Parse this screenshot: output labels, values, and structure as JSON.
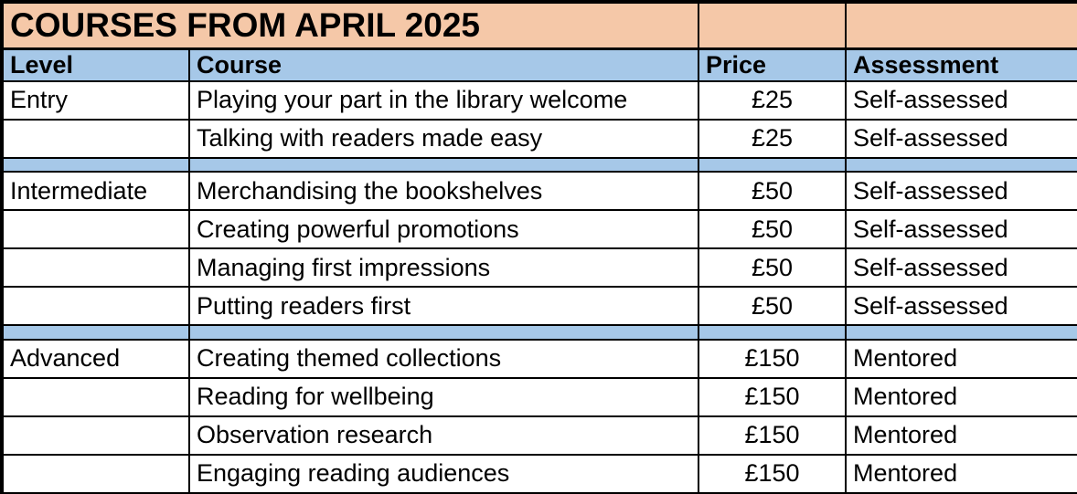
{
  "title": "COURSES FROM APRIL 2025",
  "columns": [
    "Level",
    "Course",
    "Price",
    "Assessment"
  ],
  "colors": {
    "title_bg": "#f5c8a8",
    "header_bg": "#a6c8e8",
    "separator_bg": "#a6c8e8",
    "border": "#000000",
    "text": "#000000",
    "row_bg": "#ffffff"
  },
  "rows": [
    {
      "type": "course",
      "level": "Entry",
      "course": "Playing your part in the library welcome",
      "price": "£25",
      "assessment": "Self-assessed"
    },
    {
      "type": "course",
      "level": "",
      "course": "Talking with readers made easy",
      "price": "£25",
      "assessment": "Self-assessed"
    },
    {
      "type": "separator"
    },
    {
      "type": "course",
      "level": "Intermediate",
      "course": "Merchandising the bookshelves",
      "price": "£50",
      "assessment": "Self-assessed"
    },
    {
      "type": "course",
      "level": "",
      "course": "Creating powerful promotions",
      "price": "£50",
      "assessment": "Self-assessed"
    },
    {
      "type": "course",
      "level": "",
      "course": "Managing first impressions",
      "price": "£50",
      "assessment": "Self-assessed"
    },
    {
      "type": "course",
      "level": "",
      "course": "Putting readers first",
      "price": "£50",
      "assessment": "Self-assessed"
    },
    {
      "type": "separator"
    },
    {
      "type": "course",
      "level": "Advanced",
      "course": "Creating themed collections",
      "price": "£150",
      "assessment": "Mentored"
    },
    {
      "type": "course",
      "level": "",
      "course": "Reading for wellbeing",
      "price": "£150",
      "assessment": "Mentored"
    },
    {
      "type": "course",
      "level": "",
      "course": "Observation research",
      "price": "£150",
      "assessment": "Mentored"
    },
    {
      "type": "course",
      "level": "",
      "course": "Engaging reading audiences",
      "price": "£150",
      "assessment": "Mentored"
    }
  ]
}
